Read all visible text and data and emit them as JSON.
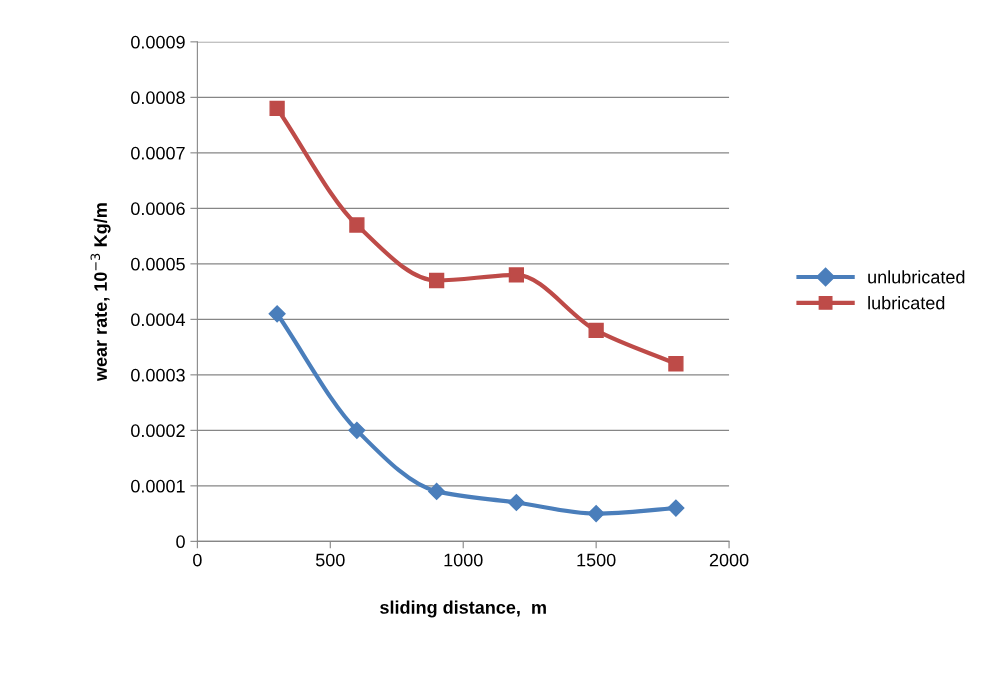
{
  "chart_data": {
    "type": "line",
    "xlabel": "sliding distance,  m",
    "ylabel": "wear rate, 10$^{−3}$ Kg/m",
    "x": [
      300,
      600,
      900,
      1200,
      1500,
      1800
    ],
    "series": [
      {
        "name": "unlubricated",
        "color": "#4a7ebb",
        "marker": "diamond",
        "values": [
          0.00041,
          0.0002,
          9e-05,
          7e-05,
          5e-05,
          6e-05
        ]
      },
      {
        "name": "lubricated",
        "color": "#be4b48",
        "marker": "square",
        "values": [
          0.00078,
          0.00057,
          0.00047,
          0.00048,
          0.00038,
          0.00032
        ]
      }
    ],
    "xlim": [
      0,
      2000
    ],
    "xticks": [
      0,
      500,
      1000,
      1500,
      2000
    ],
    "ylim": [
      0,
      0.0009
    ],
    "yticks": [
      {
        "value": 0,
        "label": "0"
      },
      0.0001,
      0.0002,
      0.0003,
      0.0004,
      0.0005,
      0.0006,
      0.0007,
      0.0008,
      0.0009
    ],
    "grid": "y",
    "legend": "right",
    "line_style": "solid"
  }
}
